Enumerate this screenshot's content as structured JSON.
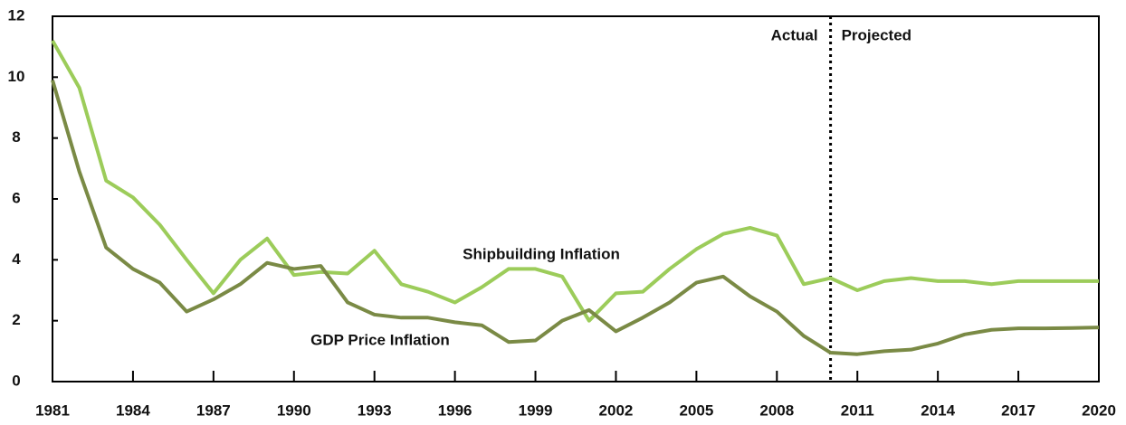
{
  "chart_data": {
    "type": "line",
    "x": [
      1981,
      1982,
      1983,
      1984,
      1985,
      1986,
      1987,
      1988,
      1989,
      1990,
      1991,
      1992,
      1993,
      1994,
      1995,
      1996,
      1997,
      1998,
      1999,
      2000,
      2001,
      2002,
      2003,
      2004,
      2005,
      2006,
      2007,
      2008,
      2009,
      2010,
      2011,
      2012,
      2013,
      2014,
      2015,
      2016,
      2017,
      2018,
      2019,
      2020
    ],
    "series": [
      {
        "name": "Shipbuilding Inflation",
        "color": "#9ccc5a",
        "values": [
          11.2,
          9.65,
          6.6,
          6.05,
          5.15,
          4.0,
          2.9,
          4.0,
          4.7,
          3.5,
          3.6,
          3.55,
          4.3,
          3.2,
          2.95,
          2.6,
          3.1,
          3.7,
          3.7,
          3.45,
          2.0,
          2.9,
          2.95,
          3.7,
          4.35,
          4.85,
          5.05,
          4.8,
          3.2,
          3.4,
          3.0,
          3.3,
          3.4,
          3.3,
          3.3,
          3.2,
          3.3,
          3.3,
          3.3,
          3.3
        ]
      },
      {
        "name": "GDP Price Inflation",
        "color": "#7a8a45",
        "values": [
          9.9,
          6.9,
          4.4,
          3.7,
          3.25,
          2.3,
          2.7,
          3.2,
          3.9,
          3.7,
          3.8,
          2.6,
          2.2,
          2.1,
          2.1,
          1.95,
          1.85,
          1.3,
          1.35,
          2.0,
          2.35,
          1.65,
          2.1,
          2.6,
          3.25,
          3.45,
          2.8,
          2.3,
          1.5,
          0.95,
          0.9,
          1.0,
          1.05,
          1.25,
          1.55,
          1.7,
          1.75,
          1.75,
          1.76,
          1.78
        ]
      }
    ],
    "xlim": [
      1981,
      2020
    ],
    "xticks": [
      1981,
      1984,
      1987,
      1990,
      1993,
      1996,
      1999,
      2002,
      2005,
      2008,
      2011,
      2014,
      2017,
      2020
    ],
    "ylim": [
      0,
      12
    ],
    "yticks": [
      0,
      2,
      4,
      6,
      8,
      10,
      12
    ],
    "projection_start": 2010,
    "annotations": [
      "Actual",
      "Projected"
    ]
  }
}
